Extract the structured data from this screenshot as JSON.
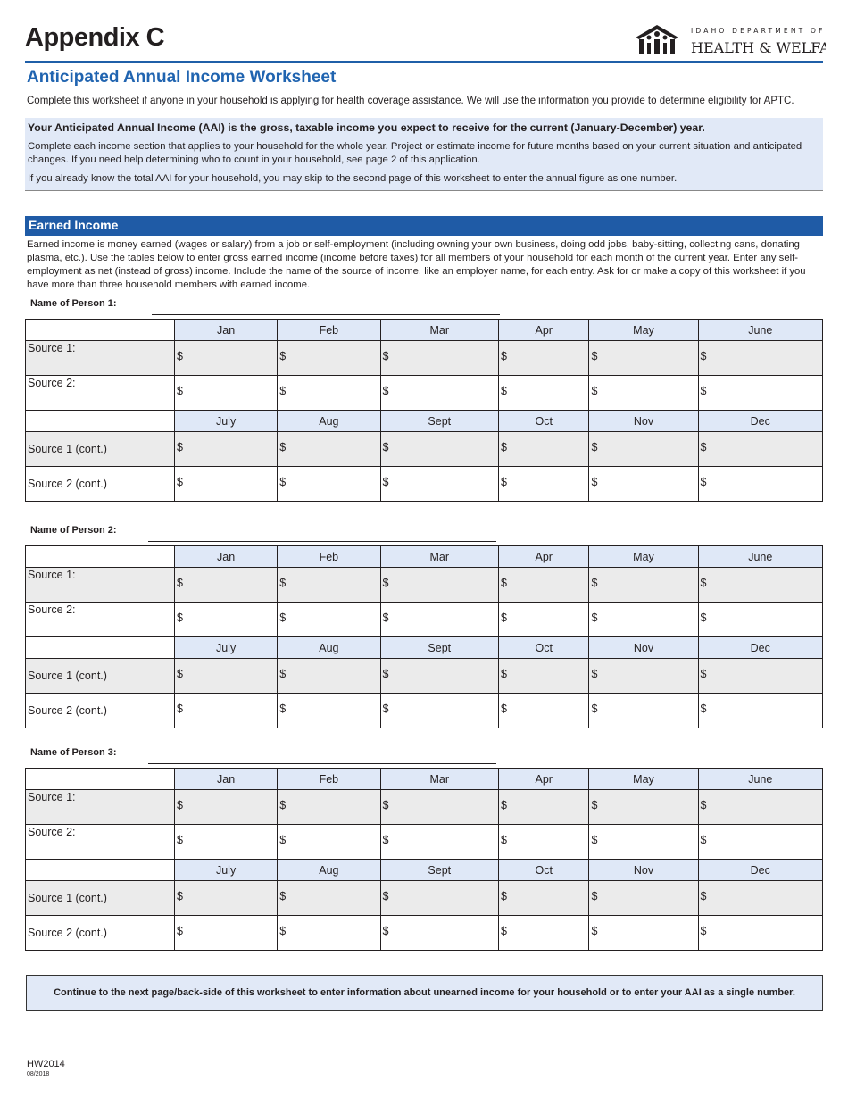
{
  "header": {
    "title": "Appendix C",
    "logo_text_top": "IDAHO DEPARTMENT OF",
    "logo_text_bottom": "HEALTH & WELFARE",
    "accent_color": "#1f5fa8"
  },
  "worksheet": {
    "subtitle": "Anticipated Annual Income Worksheet",
    "intro": "Complete this worksheet if anyone in your household is applying for health coverage assistance. We will use the information you provide to determine eligibility for APTC.",
    "aai_heading": "Your Anticipated Annual Income (AAI) is the gross, taxable income you expect to receive for the current (January-December) year.",
    "aai_p1": "Complete each income section that applies to your household for the whole year. Project or estimate income for future months based on your current situation and anticipated changes. If you need help determining who to count in your household, see page 2 of this application.",
    "aai_p2": "If you already know the total AAI for your household, you may skip to the second page of this worksheet to enter the annual figure as one number."
  },
  "earned": {
    "heading": "Earned Income",
    "description": "Earned income is money earned (wages or salary) from a job or self-employment (including owning your own business, doing odd jobs, baby-sitting, collecting cans, donating plasma, etc.). Use the tables below to enter gross earned income (income before taxes) for all members of your household for each month of the current year. Enter any self-employment as net (instead of gross) income. Include the name of the source of income, like an employer name, for each entry. Ask for or make a copy of this worksheet if you have more than three household members with earned income.",
    "months_first": [
      "Jan",
      "Feb",
      "Mar",
      "Apr",
      "May",
      "June"
    ],
    "months_second": [
      "July",
      "Aug",
      "Sept",
      "Oct",
      "Nov",
      "Dec"
    ],
    "rows_first": [
      "Source 1:",
      "Source 2:"
    ],
    "rows_second": [
      "Source 1 (cont.)",
      "Source 2 (cont.)"
    ],
    "currency_symbol": "$",
    "persons": [
      {
        "label": "Name of Person 1:",
        "name": ""
      },
      {
        "label": "Name of Person 2:",
        "name": ""
      },
      {
        "label": "Name of Person 3:",
        "name": ""
      }
    ]
  },
  "footer": {
    "continue_note": "Continue to the next page/back-side of this worksheet to enter information about unearned income for your household or to enter your AAI as a single number.",
    "form_id": "HW2014",
    "form_date": "08/2018"
  }
}
